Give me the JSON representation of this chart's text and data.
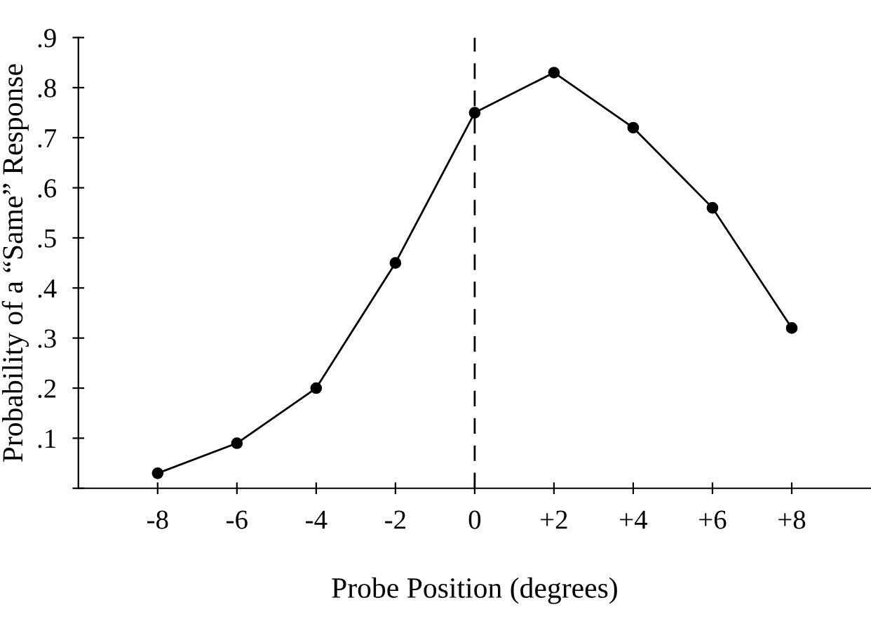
{
  "chart_data": {
    "type": "line",
    "xlabel": "Probe Position (degrees)",
    "ylabel": "Probability of a “Same” Response",
    "x": [
      -8,
      -6,
      -4,
      -2,
      0,
      2,
      4,
      6,
      8
    ],
    "series": [
      {
        "color": "#000000",
        "values": [
          0.03,
          0.09,
          0.2,
          0.45,
          0.75,
          0.83,
          0.72,
          0.56,
          0.32
        ]
      }
    ],
    "xlim": [
      -10,
      10
    ],
    "xticks": [
      {
        "value": -8,
        "label": "-8"
      },
      {
        "value": -6,
        "label": "-6"
      },
      {
        "value": -4,
        "label": "-4"
      },
      {
        "value": -2,
        "label": "-2"
      },
      {
        "value": 0,
        "label": "0"
      },
      {
        "value": 2,
        "label": "+2"
      },
      {
        "value": 4,
        "label": "+4"
      },
      {
        "value": 6,
        "label": "+6"
      },
      {
        "value": 8,
        "label": "+8"
      }
    ],
    "ylim": [
      0,
      0.9
    ],
    "yticks": [
      {
        "value": 0,
        "label": null
      },
      {
        "value": 0.1,
        "label": ".1"
      },
      {
        "value": 0.2,
        "label": ".2"
      },
      {
        "value": 0.3,
        "label": ".3"
      },
      {
        "value": 0.4,
        "label": ".4"
      },
      {
        "value": 0.5,
        "label": ".5"
      },
      {
        "value": 0.6,
        "label": ".6"
      },
      {
        "value": 0.7,
        "label": ".7"
      },
      {
        "value": 0.8,
        "label": ".8"
      },
      {
        "value": 0.9,
        "label": ".9"
      }
    ],
    "ref_lines": [
      {
        "axis": "x",
        "value": 0,
        "color": "#000000",
        "line_style": "dashed"
      }
    ],
    "marker": "circle",
    "line_style": "solid",
    "grid": false,
    "legend": false
  }
}
